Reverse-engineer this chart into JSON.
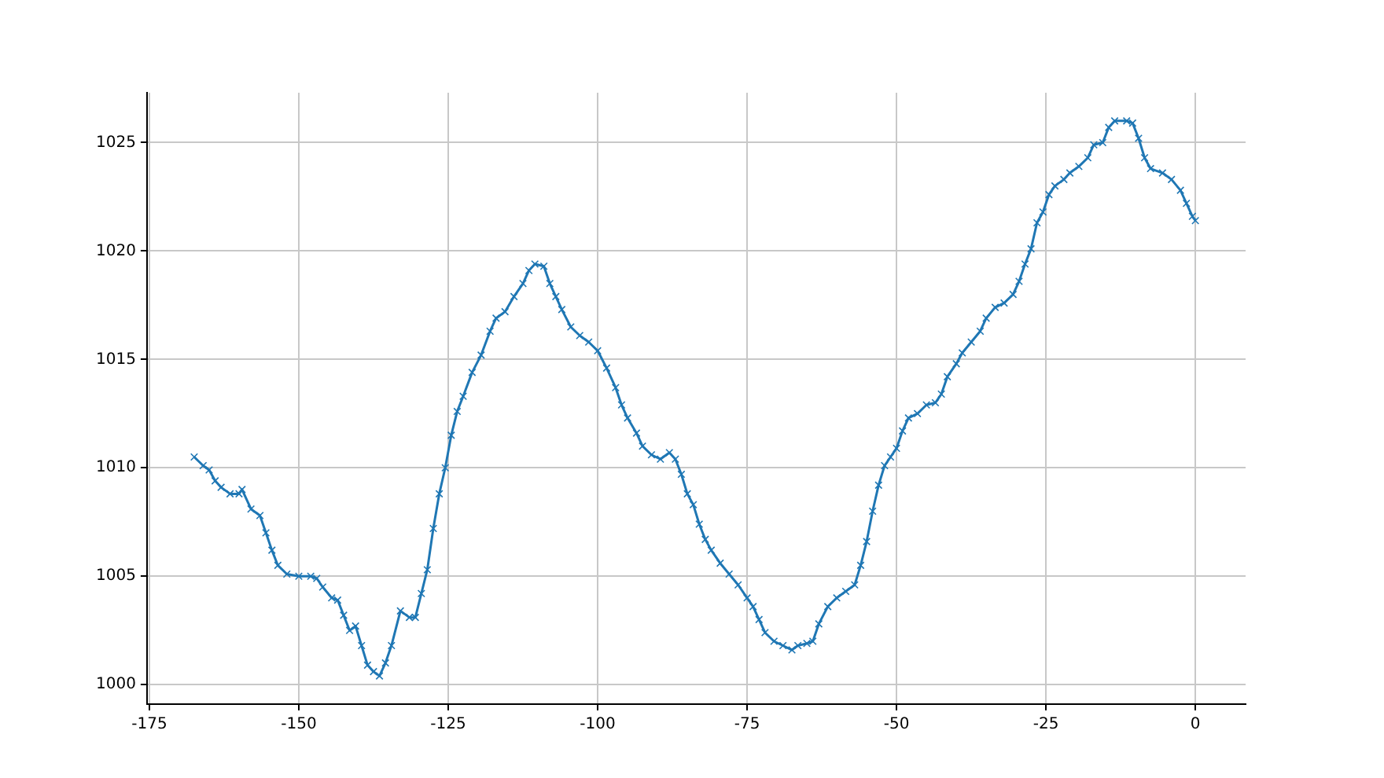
{
  "chart_data": {
    "type": "line",
    "marker": "cross",
    "line_style": "solid",
    "grid": true,
    "legend": false,
    "xlim": [
      -175.4,
      8.4
    ],
    "ylim": [
      999.1,
      1027.3
    ],
    "xticks": [
      -175,
      -150,
      -125,
      -100,
      -75,
      -50,
      -25,
      0
    ],
    "yticks": [
      1000,
      1005,
      1010,
      1015,
      1020,
      1025
    ],
    "series": [
      {
        "color": "#1f77b4",
        "x": [
          -167.5,
          -166,
          -165,
          -164,
          -163,
          -161.5,
          -160,
          -159.5,
          -158,
          -156.5,
          -155.5,
          -154.5,
          -153.5,
          -152,
          -150,
          -148,
          -147,
          -146,
          -144.5,
          -143.5,
          -142.5,
          -141.5,
          -140.5,
          -139.5,
          -138.5,
          -137.5,
          -136.5,
          -135.5,
          -134.5,
          -133,
          -131.5,
          -130.5,
          -129.5,
          -128.5,
          -127.5,
          -126.5,
          -125.5,
          -124.5,
          -123.5,
          -122.5,
          -121,
          -119.5,
          -118,
          -117,
          -115.5,
          -114,
          -112.5,
          -111.5,
          -110.5,
          -109,
          -108,
          -107,
          -106,
          -104.5,
          -103,
          -101.5,
          -100,
          -98.5,
          -97,
          -96,
          -95,
          -93.5,
          -92.5,
          -91,
          -89.5,
          -88,
          -87,
          -86,
          -85,
          -84,
          -83,
          -82,
          -81,
          -79.5,
          -78,
          -76.5,
          -75,
          -74,
          -73,
          -72,
          -70.5,
          -69,
          -67.5,
          -66.5,
          -65,
          -64,
          -63,
          -61.5,
          -60,
          -58.5,
          -57,
          -56,
          -55,
          -54,
          -53,
          -52,
          -51,
          -50,
          -49,
          -48,
          -46.5,
          -45,
          -43.5,
          -42.5,
          -41.5,
          -40,
          -39,
          -37.5,
          -36,
          -35,
          -33.5,
          -32,
          -30.5,
          -29.5,
          -28.5,
          -27.5,
          -26.5,
          -25.5,
          -24.5,
          -23.5,
          -22,
          -21,
          -19.5,
          -18,
          -17,
          -15.5,
          -14.5,
          -13.5,
          -11.5,
          -10.5,
          -9.5,
          -8.5,
          -7.5,
          -5.5,
          -4,
          -2.5,
          -1.5,
          -0.5,
          0
        ],
        "values": [
          1010.5,
          1010.1,
          1009.9,
          1009.4,
          1009.1,
          1008.8,
          1008.8,
          1009.0,
          1008.1,
          1007.8,
          1007.0,
          1006.2,
          1005.5,
          1005.1,
          1005.0,
          1005.0,
          1004.9,
          1004.5,
          1004.0,
          1003.9,
          1003.2,
          1002.5,
          1002.7,
          1001.8,
          1000.9,
          1000.6,
          1000.4,
          1001.0,
          1001.8,
          1003.4,
          1003.1,
          1003.1,
          1004.2,
          1005.3,
          1007.2,
          1008.8,
          1010.0,
          1011.5,
          1012.6,
          1013.3,
          1014.4,
          1015.2,
          1016.3,
          1016.9,
          1017.2,
          1017.9,
          1018.5,
          1019.1,
          1019.4,
          1019.3,
          1018.5,
          1017.9,
          1017.3,
          1016.5,
          1016.1,
          1015.8,
          1015.4,
          1014.6,
          1013.7,
          1012.9,
          1012.3,
          1011.6,
          1011.0,
          1010.6,
          1010.4,
          1010.7,
          1010.4,
          1009.7,
          1008.8,
          1008.3,
          1007.4,
          1006.7,
          1006.2,
          1005.6,
          1005.1,
          1004.6,
          1004.0,
          1003.6,
          1003.0,
          1002.4,
          1002.0,
          1001.8,
          1001.6,
          1001.8,
          1001.9,
          1002.0,
          1002.8,
          1003.6,
          1004.0,
          1004.3,
          1004.6,
          1005.5,
          1006.6,
          1008.0,
          1009.2,
          1010.1,
          1010.5,
          1010.9,
          1011.7,
          1012.3,
          1012.5,
          1012.9,
          1013.0,
          1013.4,
          1014.2,
          1014.8,
          1015.3,
          1015.8,
          1016.3,
          1016.9,
          1017.4,
          1017.6,
          1018.0,
          1018.6,
          1019.4,
          1020.1,
          1021.3,
          1021.8,
          1022.6,
          1023.0,
          1023.3,
          1023.6,
          1023.9,
          1024.3,
          1024.9,
          1025.0,
          1025.7,
          1026.0,
          1026.0,
          1025.9,
          1025.2,
          1024.3,
          1023.8,
          1023.6,
          1023.3,
          1022.8,
          1022.2,
          1021.6,
          1021.4
        ]
      }
    ]
  }
}
